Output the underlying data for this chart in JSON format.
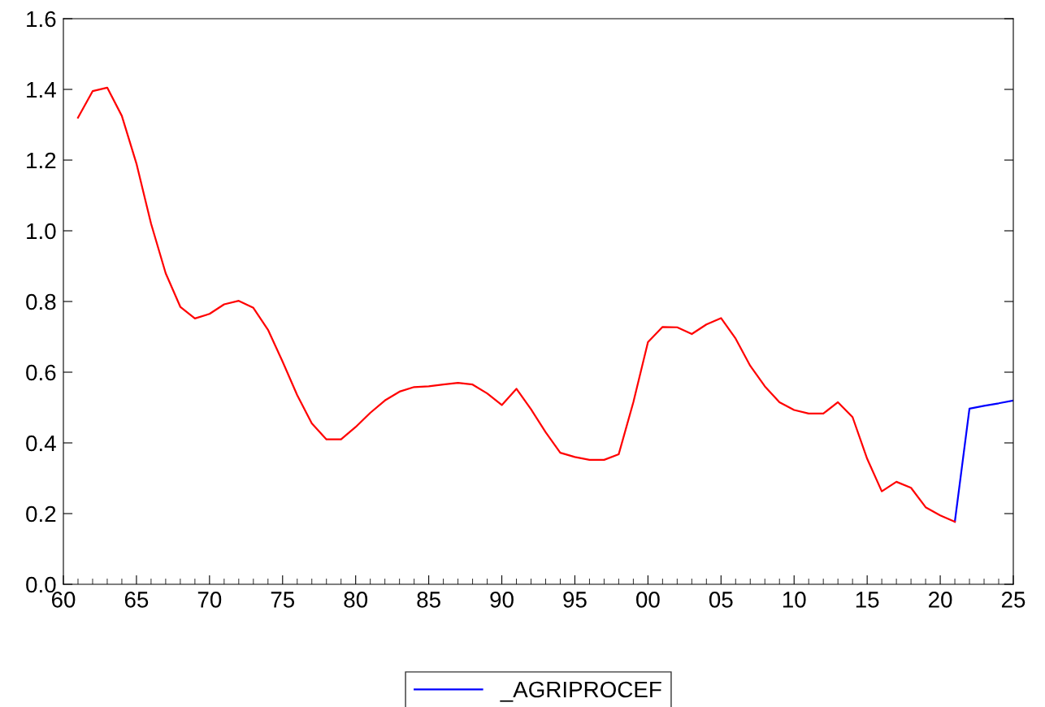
{
  "chart_data": {
    "type": "line",
    "x": [
      1961,
      1962,
      1963,
      1964,
      1965,
      1966,
      1967,
      1968,
      1969,
      1970,
      1971,
      1972,
      1973,
      1974,
      1975,
      1976,
      1977,
      1978,
      1979,
      1980,
      1981,
      1982,
      1983,
      1984,
      1985,
      1986,
      1987,
      1988,
      1989,
      1990,
      1991,
      1992,
      1993,
      1994,
      1995,
      1996,
      1997,
      1998,
      1999,
      2000,
      2001,
      2002,
      2003,
      2004,
      2005,
      2006,
      2007,
      2008,
      2009,
      2010,
      2011,
      2012,
      2013,
      2014,
      2015,
      2016,
      2017,
      2018,
      2019,
      2020,
      2021
    ],
    "series": [
      {
        "name": "_AGRIPROCEF",
        "color": "#0000ff",
        "x": [
          2021,
          2022,
          2023,
          2024,
          2025
        ],
        "values": [
          0.177,
          0.497,
          0.505,
          0.512,
          0.52
        ]
      },
      {
        "color": "#ff0000",
        "values": [
          1.32,
          1.395,
          1.405,
          1.325,
          1.19,
          1.02,
          0.88,
          0.785,
          0.752,
          0.765,
          0.792,
          0.802,
          0.782,
          0.72,
          0.63,
          0.535,
          0.455,
          0.41,
          0.41,
          0.445,
          0.485,
          0.52,
          0.545,
          0.558,
          0.56,
          0.565,
          0.57,
          0.565,
          0.54,
          0.507,
          0.553,
          0.495,
          0.43,
          0.372,
          0.36,
          0.352,
          0.352,
          0.368,
          0.515,
          0.685,
          0.728,
          0.727,
          0.708,
          0.735,
          0.753,
          0.695,
          0.618,
          0.56,
          0.515,
          0.493,
          0.483,
          0.483,
          0.515,
          0.473,
          0.355,
          0.263,
          0.29,
          0.273,
          0.218,
          0.195,
          0.177
        ]
      }
    ],
    "xlim": [
      1960,
      2025
    ],
    "xticks": [
      {
        "value": 1960,
        "label": "60"
      },
      {
        "value": 1965,
        "label": "65"
      },
      {
        "value": 1970,
        "label": "70"
      },
      {
        "value": 1975,
        "label": "75"
      },
      {
        "value": 1980,
        "label": "80"
      },
      {
        "value": 1985,
        "label": "85"
      },
      {
        "value": 1990,
        "label": "90"
      },
      {
        "value": 1995,
        "label": "95"
      },
      {
        "value": 2000,
        "label": "00"
      },
      {
        "value": 2005,
        "label": "05"
      },
      {
        "value": 2010,
        "label": "10"
      },
      {
        "value": 2015,
        "label": "15"
      },
      {
        "value": 2020,
        "label": "20"
      },
      {
        "value": 2025,
        "label": "25"
      }
    ],
    "ylim": [
      0,
      1.6
    ],
    "yticks": [
      {
        "value": 0,
        "label": "0.0"
      },
      {
        "value": 0.2,
        "label": "0.2"
      },
      {
        "value": 0.4,
        "label": "0.4"
      },
      {
        "value": 0.6,
        "label": "0.6"
      },
      {
        "value": 0.8,
        "label": "0.8"
      },
      {
        "value": 1.0,
        "label": "1.0"
      },
      {
        "value": 1.2,
        "label": "1.2"
      },
      {
        "value": 1.4,
        "label": "1.4"
      },
      {
        "value": 1.6,
        "label": "1.6"
      }
    ],
    "grid": false,
    "legend": "bottom",
    "line_style": "solid",
    "marker": "none"
  }
}
